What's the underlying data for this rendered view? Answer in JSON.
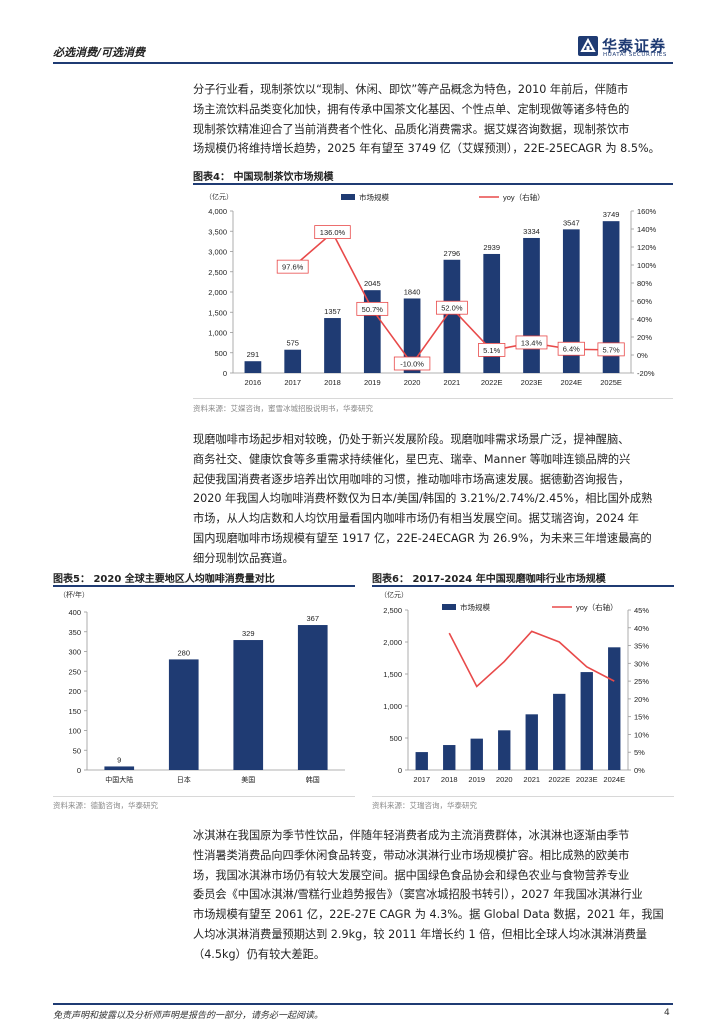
{
  "header": {
    "category": "必选消费/可选消费",
    "logo_cn": "华泰证券",
    "logo_en": "HUATAI SECURITIES"
  },
  "paragraph1": [
    "分子行业看，现制茶饮以“现制、休闲、即饮”等产品概念为特色，2010 年前后，伴随市",
    "场主流饮料品类变化加快，拥有传承中国茶文化基因、个性点单、定制现做等诸多特色的",
    "现制茶饮精准迎合了当前消费者个性化、品质化消费需求。据艾媒咨询数据，现制茶饮市",
    "场规模仍将维持增长趋势，2025 年有望至 3749 亿（艾媒预测），22E-25ECAGR 为 8.5%。"
  ],
  "paragraph2": [
    "现磨咖啡市场起步相对较晚，仍处于新兴发展阶段。现磨咖啡需求场景广泛，提神醒脑、",
    "商务社交、健康饮食等多重需求持续催化，星巴克、瑞幸、Manner 等咖啡连锁品牌的兴",
    "起使我国消费者逐步培养出饮用咖啡的习惯，推动咖啡市场高速发展。据德勤咨询报告，",
    "2020 年我国人均咖啡消费杯数仅为日本/美国/韩国的 3.21%/2.74%/2.45%，相比国外成熟",
    "市场，从人均店数和人均饮用量看国内咖啡市场仍有相当发展空间。据艾瑞咨询，2024 年",
    "国内现磨咖啡市场规模有望至 1917 亿，22E-24ECAGR 为 26.9%，为未来三年增速最高的",
    "细分现制饮品赛道。"
  ],
  "paragraph3": [
    "冰淇淋在我国原为季节性饮品，伴随年轻消费者成为主流消费群体，冰淇淋也逐渐由季节",
    "性消暑类消费品向四季休闲食品转变，带动冰淇淋行业市场规模扩容。相比成熟的欧美市",
    "场，我国冰淇淋市场仍有较大发展空间。据中国绿色食品协会和绿色农业与食物营养专业",
    "委员会《中国冰淇淋/雪糕行业趋势报告》（窦宫冰城招股书转引），2027 年我国冰淇淋行业",
    "市场规模有望至 2061 亿，22E-27E CAGR 为 4.3%。据 Global Data 数据，2021 年，我国",
    "人均冰淇淋消费量预期达到 2.9kg，较 2011 年增长约 1 倍，但相比全球人均冰淇淋消费量",
    "（4.5kg）仍有较大差距。"
  ],
  "figure4": {
    "title": "图表4：  中国现制茶饮市场规模",
    "source": "资料来源：艾媒咨询，蜜雪冰城招股说明书，华泰研究",
    "chart_data": {
      "type": "bar",
      "categories": [
        "2016",
        "2017",
        "2018",
        "2019",
        "2020",
        "2021",
        "2022E",
        "2023E",
        "2024E",
        "2025E"
      ],
      "series": [
        {
          "name": "市场规模",
          "type": "bar",
          "values": [
            291,
            575,
            1357,
            2045,
            1840,
            2796,
            2939,
            3334,
            3547,
            3749
          ],
          "value_labels": [
            "291",
            "575",
            "1357",
            "2045",
            "1840",
            "2796",
            "2939",
            "3334",
            "3547",
            "3749"
          ]
        },
        {
          "name": "yoy（右轴）",
          "type": "line",
          "values": [
            null,
            97.6,
            136.0,
            50.7,
            -10.0,
            52.0,
            5.1,
            13.4,
            6.4,
            5.7
          ],
          "value_labels": [
            "",
            "97.6%",
            "136.0%",
            "50.7%",
            "-10.0%",
            "52.0%",
            "5.1%",
            "13.4%",
            "6.4%",
            "5.7%"
          ]
        }
      ],
      "yunit": "（亿元）",
      "ylim": [
        0,
        4000
      ],
      "y_ticks": [
        "0",
        "500",
        "1,000",
        "1,500",
        "2,000",
        "2,500",
        "3,000",
        "3,500",
        "4,000"
      ],
      "y2lim": [
        -20,
        160
      ],
      "y2_ticks": [
        "-20%",
        "0%",
        "20%",
        "40%",
        "60%",
        "80%",
        "100%",
        "120%",
        "140%",
        "160%"
      ],
      "legend_position": "top",
      "colors": {
        "bar": "#1f3b73",
        "line": "#e84a4a"
      }
    }
  },
  "figure5": {
    "title": "图表5：  2020 全球主要地区人均咖啡消费量对比",
    "source": "资料来源：德勤咨询，华泰研究",
    "chart_data": {
      "type": "bar",
      "categories": [
        "中国大陆",
        "日本",
        "美国",
        "韩国"
      ],
      "values": [
        9,
        280,
        329,
        367
      ],
      "value_labels": [
        "9",
        "280",
        "329",
        "367"
      ],
      "yunit": "（杯/年）",
      "ylim": [
        0,
        400
      ],
      "y_ticks": [
        "0",
        "50",
        "100",
        "150",
        "200",
        "250",
        "300",
        "350",
        "400"
      ],
      "colors": {
        "bar": "#1f3b73"
      }
    }
  },
  "figure6": {
    "title": "图表6：  2017-2024 年中国现磨咖啡行业市场规模",
    "source": "资料来源：艾瑞咨询，华泰研究",
    "chart_data": {
      "type": "bar",
      "categories": [
        "2017",
        "2018",
        "2019",
        "2020",
        "2021",
        "2022E",
        "2023E",
        "2024E"
      ],
      "series": [
        {
          "name": "市场规模",
          "type": "bar",
          "values": [
            280,
            390,
            490,
            620,
            870,
            1190,
            1530,
            1917
          ]
        },
        {
          "name": "yoy（右轴）",
          "type": "line",
          "values": [
            null,
            38.5,
            23.5,
            30.5,
            39.0,
            36.0,
            29.0,
            25.0
          ]
        }
      ],
      "yunit": "（亿元）",
      "ylim": [
        0,
        2500
      ],
      "y_ticks": [
        "0",
        "500",
        "1,000",
        "1,500",
        "2,000",
        "2,500"
      ],
      "y2lim": [
        0,
        45
      ],
      "y2_ticks": [
        "0%",
        "5%",
        "10%",
        "15%",
        "20%",
        "25%",
        "30%",
        "35%",
        "40%",
        "45%"
      ],
      "legend_position": "top",
      "colors": {
        "bar": "#1f3b73",
        "line": "#e84a4a"
      }
    }
  },
  "footer": {
    "disclaimer": "免责声明和披露以及分析师声明是报告的一部分，请务必一起阅读。",
    "page_number": "4"
  }
}
